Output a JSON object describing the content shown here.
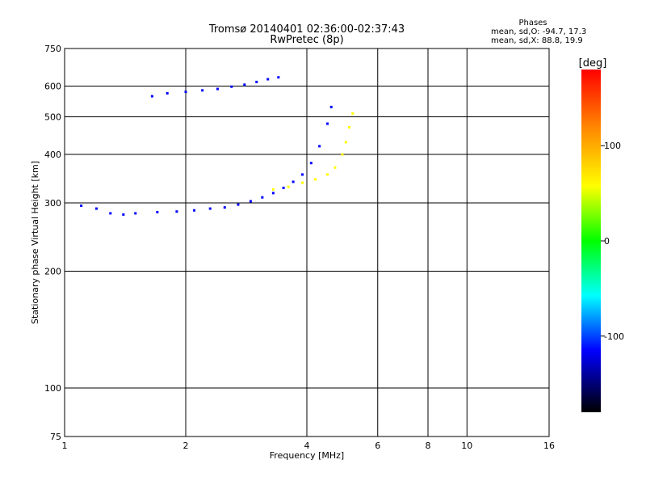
{
  "chart_data": {
    "type": "scatter",
    "title_line1": "Tromsø 20140401 02:36:00-02:37:43",
    "title_line2": "RwPretec (8p)",
    "xlabel": "Frequency [MHz]",
    "ylabel": "Stationary phase Virtual Height [km]",
    "x_scale": "log",
    "y_scale": "log",
    "xlim": [
      1,
      16
    ],
    "ylim": [
      75,
      750
    ],
    "x_ticks": [
      1,
      2,
      4,
      6,
      8,
      10,
      16
    ],
    "y_ticks": [
      75,
      100,
      200,
      300,
      400,
      500,
      600,
      750
    ],
    "grid": true,
    "stats": {
      "header": "Phases",
      "line_o": "mean, sd,O: -94.7, 17.3",
      "line_x": "mean, sd,X:  88.8, 19.9"
    },
    "colorbar": {
      "label": "[deg]",
      "range": [
        -180,
        180
      ],
      "ticks": [
        100,
        0,
        -100
      ],
      "colors": [
        "#ff0000",
        "#ff8000",
        "#ffff00",
        "#00ff00",
        "#00ffff",
        "#0000ff",
        "#000000"
      ]
    },
    "trace_colors": {
      "o_mode": "#0000ff",
      "x_mode": "#ffff00",
      "mixed": "#00ffff"
    },
    "traces": [
      {
        "name": "",
        "mode": "O",
        "color": "#0000ff",
        "x": [
          1.1,
          1.2,
          1.3,
          1.4,
          1.5,
          1.7,
          1.9,
          2.1,
          2.3,
          2.5,
          2.7,
          2.9,
          3.1,
          3.3,
          3.5,
          3.7,
          3.9,
          4.1,
          4.3,
          4.5,
          4.6
        ],
        "y": [
          295,
          290,
          282,
          280,
          282,
          284,
          285,
          287,
          290,
          292,
          297,
          303,
          310,
          318,
          328,
          340,
          355,
          380,
          420,
          480,
          530
        ]
      },
      {
        "name": "",
        "mode": "X",
        "color": "#ffff00",
        "x": [
          3.3,
          3.6,
          3.9,
          4.2,
          4.5,
          4.7,
          4.9,
          5.0,
          5.1,
          5.2
        ],
        "y": [
          325,
          330,
          338,
          345,
          355,
          370,
          400,
          430,
          470,
          510
        ]
      },
      {
        "name": "",
        "mode": "F2 upper",
        "color": "#0000ff",
        "x": [
          1.65,
          1.8,
          2.0,
          2.2,
          2.4,
          2.6,
          2.8,
          3.0,
          3.2,
          3.4
        ],
        "y": [
          565,
          575,
          580,
          585,
          590,
          598,
          605,
          615,
          625,
          632
        ]
      }
    ]
  }
}
